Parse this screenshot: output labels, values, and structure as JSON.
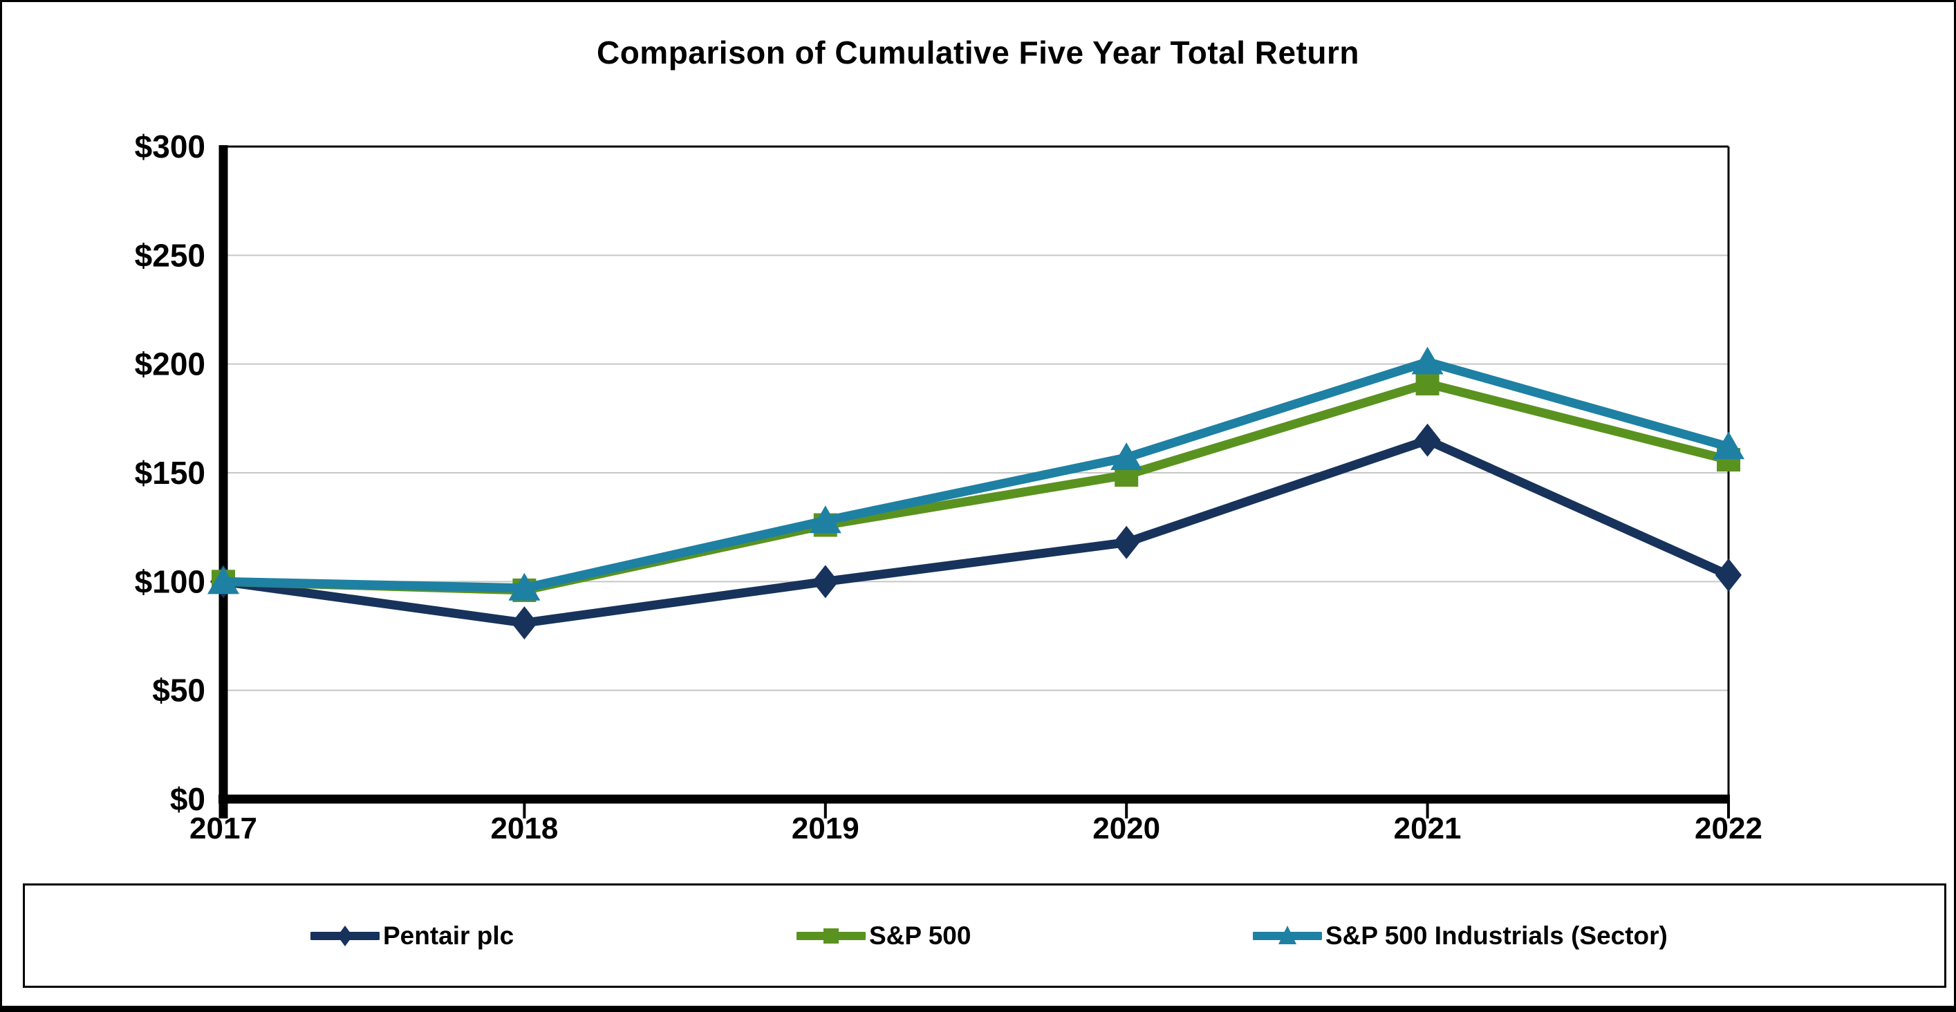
{
  "chart_data": {
    "type": "line",
    "title": "Comparison of Cumulative Five Year Total Return",
    "categories": [
      "2017",
      "2018",
      "2019",
      "2020",
      "2021",
      "2022"
    ],
    "series": [
      {
        "name": "Pentair plc",
        "marker": "diamond",
        "color": "#17335C",
        "values": [
          100,
          81,
          100,
          118,
          165,
          103
        ]
      },
      {
        "name": "S&P 500",
        "marker": "square",
        "color": "#5A9220",
        "values": [
          100,
          96,
          126,
          149,
          191,
          156
        ]
      },
      {
        "name": "S&P 500 Industrials (Sector)",
        "marker": "triangle",
        "color": "#1E80A3",
        "values": [
          100,
          97,
          128,
          157,
          201,
          162
        ]
      }
    ],
    "xlabel": "",
    "ylabel": "",
    "ylim": [
      0,
      300
    ],
    "y_ticks": [
      0,
      50,
      100,
      150,
      200,
      250,
      300
    ],
    "y_tick_labels": [
      "$0",
      "$50",
      "$100",
      "$150",
      "$200",
      "$250",
      "$300"
    ],
    "grid": "horizontal-only",
    "gridline_color": "#C6C6C6",
    "axis_color": "#000000",
    "legend_position": "bottom-boxed"
  }
}
